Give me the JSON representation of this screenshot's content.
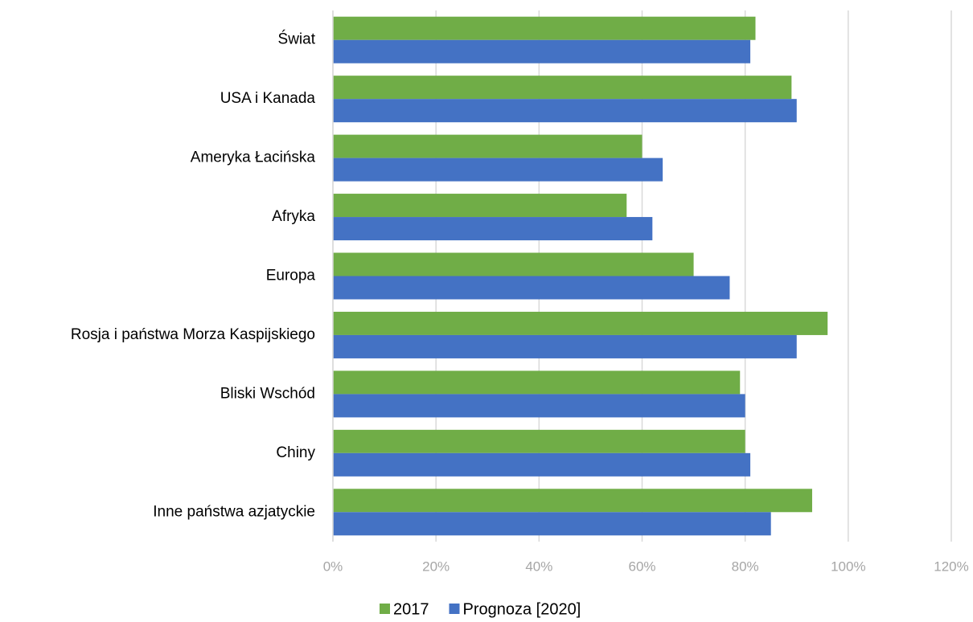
{
  "chart_data": {
    "type": "hbar",
    "categories": [
      "Świat",
      "USA i Kanada",
      "Ameryka Łacińska",
      "Afryka",
      "Europa",
      "Rosja i państwa Morza Kaspijskiego",
      "Bliski Wschód",
      "Chiny",
      "Inne państwa azjatyckie"
    ],
    "series": [
      {
        "name": "2017",
        "color": "#70ad47",
        "values": [
          82,
          89,
          60,
          57,
          70,
          96,
          79,
          80,
          93
        ]
      },
      {
        "name": "Prognoza [2020]",
        "color": "#4472c4",
        "values": [
          81,
          90,
          64,
          62,
          77,
          90,
          80,
          81,
          85
        ]
      }
    ],
    "xlim": [
      0,
      120
    ],
    "xticks": [
      {
        "value": 0,
        "label": "0%"
      },
      {
        "value": 20,
        "label": "20%"
      },
      {
        "value": 40,
        "label": "40%"
      },
      {
        "value": 60,
        "label": "60%"
      },
      {
        "value": 80,
        "label": "80%"
      },
      {
        "value": 100,
        "label": "100%"
      },
      {
        "value": 120,
        "label": "120%"
      }
    ],
    "grid": true,
    "legend": "bottom"
  }
}
